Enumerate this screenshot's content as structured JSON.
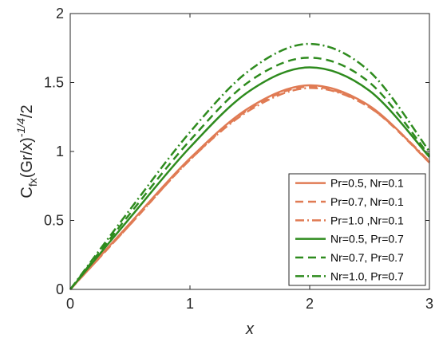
{
  "chart_data": {
    "type": "line",
    "title": "",
    "xlabel": "x",
    "ylabel": {
      "base": "C",
      "base_sub": "fx",
      "middle": "(Gr/x)",
      "sup": "-1/4",
      "tail": "/2"
    },
    "xlim": [
      0,
      3
    ],
    "ylim": [
      0,
      2
    ],
    "x_ticks": [
      "0",
      "1",
      "2",
      "3"
    ],
    "y_ticks": [
      "0",
      "0.5",
      "1",
      "1.5",
      "2"
    ],
    "grid": false,
    "legend_position": "bottom-right",
    "x": [
      0,
      0.5,
      1.0,
      1.5,
      2.0,
      2.5,
      3.0
    ],
    "series": [
      {
        "name": "Pr=0.5, Nr=0.1",
        "color": "#E07B54",
        "dash": "solid",
        "values": [
          0,
          0.48,
          0.95,
          1.32,
          1.48,
          1.33,
          0.92
        ]
      },
      {
        "name": "Pr=0.7, Nr=0.1",
        "color": "#E07B54",
        "dash": "dashed",
        "values": [
          0,
          0.47,
          0.94,
          1.31,
          1.47,
          1.32,
          0.92
        ]
      },
      {
        "name": "Pr=1.0 ,Nr=0.1",
        "color": "#E07B54",
        "dash": "dashdot",
        "values": [
          0,
          0.47,
          0.94,
          1.3,
          1.46,
          1.32,
          0.93
        ]
      },
      {
        "name": "Nr=0.5, Pr=0.7",
        "color": "#2E8B1E",
        "dash": "solid",
        "values": [
          0,
          0.52,
          1.03,
          1.44,
          1.61,
          1.44,
          0.96
        ]
      },
      {
        "name": "Nr=0.7, Pr=0.7",
        "color": "#2E8B1E",
        "dash": "dashed",
        "values": [
          0,
          0.55,
          1.08,
          1.51,
          1.68,
          1.5,
          0.97
        ]
      },
      {
        "name": "Nr=1.0, Pr=0.7",
        "color": "#2E8B1E",
        "dash": "dashdot",
        "values": [
          0,
          0.58,
          1.14,
          1.59,
          1.78,
          1.58,
          1.0
        ]
      }
    ]
  }
}
